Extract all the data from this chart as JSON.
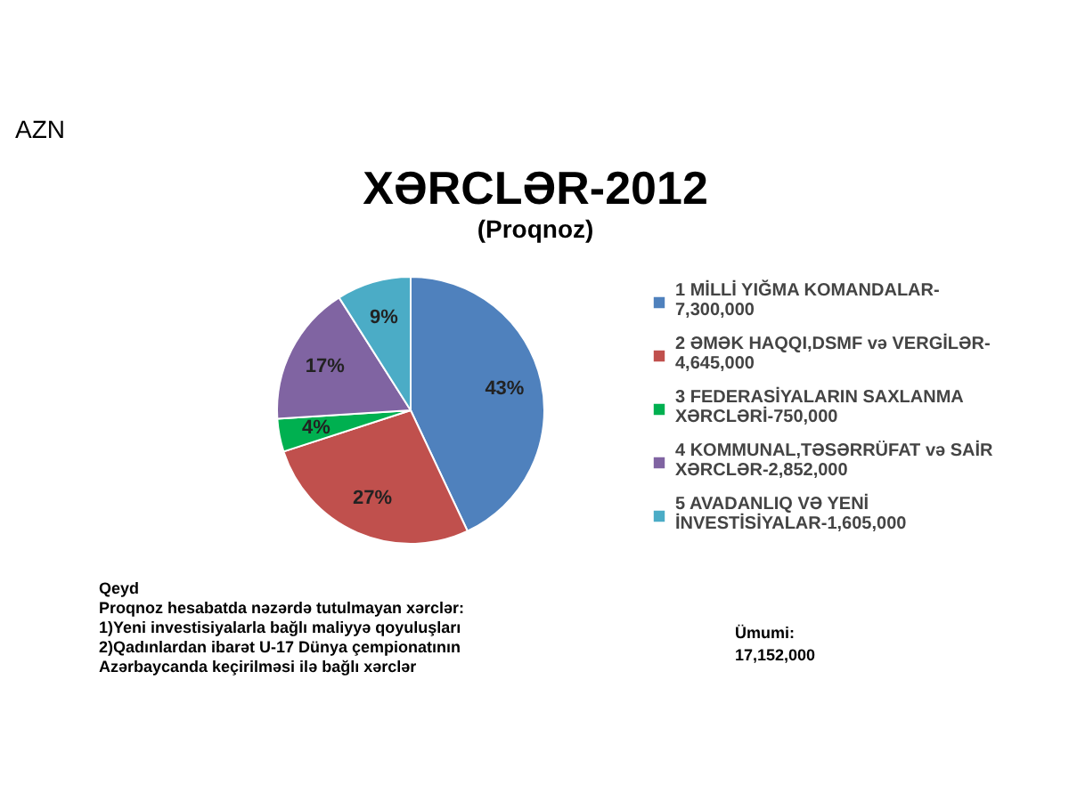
{
  "chart_data": {
    "type": "pie",
    "title": "XƏRCLƏR-2012",
    "subtitle": "(Proqnoz)",
    "categories": [
      "1 MİLLİ YIĞMA KOMANDALAR-\n7,300,000",
      "2 ƏMƏK HAQQI,DSMF və VERGİLƏR-\n4,645,000",
      "3 FEDERASİYALARIN SAXLANMA\nXƏRCLƏRİ-750,000",
      "4 KOMMUNAL,TƏSƏRRÜFAT və SAİR\nXƏRCLƏR-2,852,000",
      "5 AVADANLIQ VƏ YENİ\nİNVESTİSİYALAR-1,605,000"
    ],
    "values": [
      43,
      27,
      4,
      17,
      9
    ],
    "colors": [
      "#4f81bd",
      "#c0504d",
      "#00b050",
      "#8064a2",
      "#4bacc6"
    ],
    "value_labels": [
      "43%",
      "27%",
      "4%",
      "17%",
      "9%"
    ],
    "legend": "right",
    "annotations": [
      "AZN",
      "Qeyd",
      "Proqnoz hesabatda nəzərdə tutulmayan xərclər:",
      "1)Yeni investisiyalarla bağlı maliyyə qoyuluşları",
      "2)Qadınlardan ibarət U-17 Dünya çempionatının",
      "Azərbaycanda  keçirilməsi ilə bağlı xərclər",
      "Ümumi:",
      "17,152,000"
    ]
  }
}
